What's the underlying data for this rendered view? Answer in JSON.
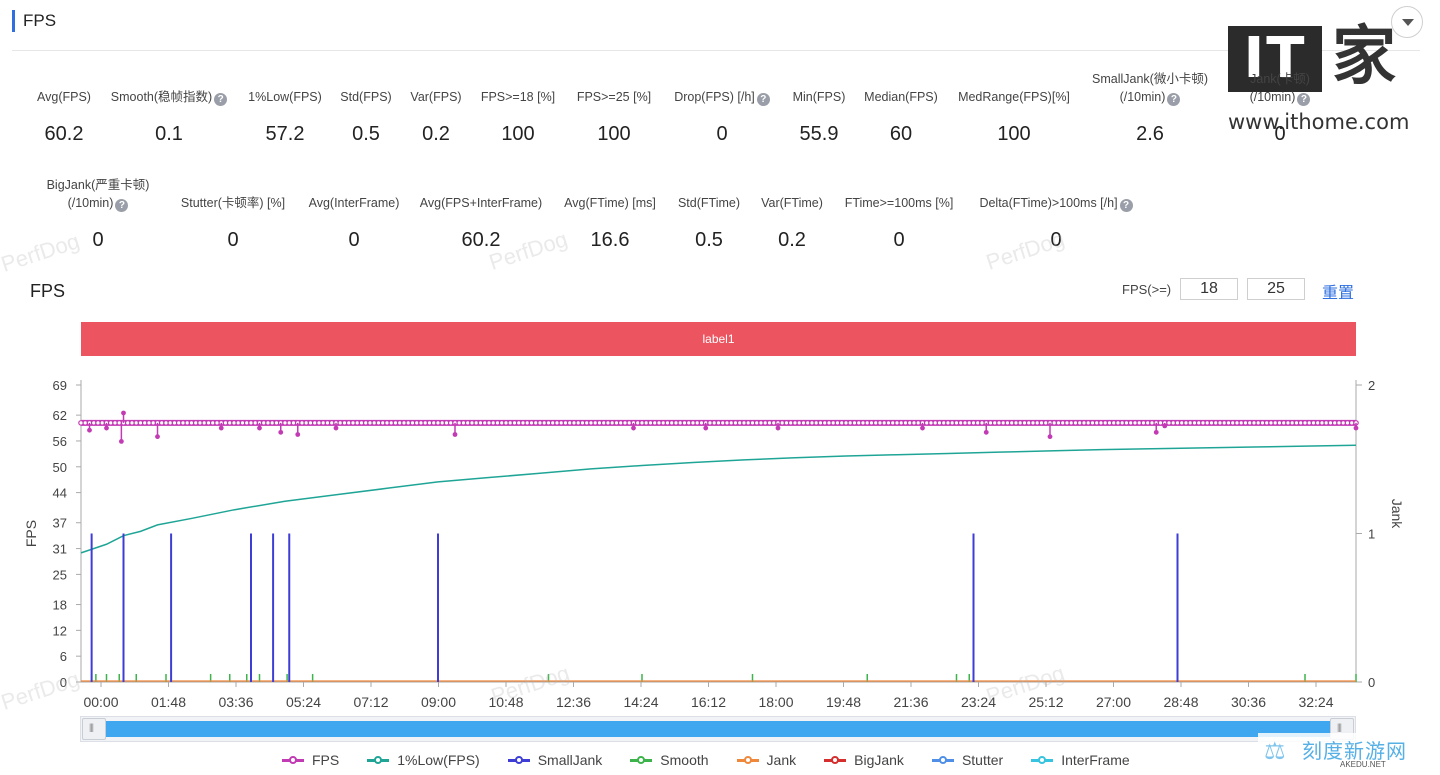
{
  "header": {
    "title": "FPS"
  },
  "logo": {
    "it": "IT",
    "jia": "家",
    "url": "www.ithome.com"
  },
  "metrics_row1": [
    {
      "label": "Avg(FPS)",
      "value": "60.2",
      "help": false
    },
    {
      "label": "Smooth(稳帧指数)",
      "value": "0.1",
      "help": true
    },
    {
      "label": "1%Low(FPS)",
      "value": "57.2",
      "help": false
    },
    {
      "label": "Std(FPS)",
      "value": "0.5",
      "help": false
    },
    {
      "label": "Var(FPS)",
      "value": "0.2",
      "help": false
    },
    {
      "label": "FPS>=18 [%]",
      "value": "100",
      "help": false
    },
    {
      "label": "FPS>=25 [%]",
      "value": "100",
      "help": false
    },
    {
      "label": "Drop(FPS) [/h]",
      "value": "0",
      "help": true
    },
    {
      "label": "Min(FPS)",
      "value": "55.9",
      "help": false
    },
    {
      "label": "Median(FPS)",
      "value": "60",
      "help": false
    },
    {
      "label": "MedRange(FPS)[%]",
      "value": "100",
      "help": false
    },
    {
      "label": "SmallJank(微小卡顿)",
      "label2": "(/10min)",
      "value": "2.6",
      "help": true
    },
    {
      "label": "Jank(卡顿)",
      "label2": "(/10min)",
      "value": "0",
      "help": true
    }
  ],
  "metrics_row2": [
    {
      "label": "BigJank(严重卡顿)",
      "label2": "(/10min)",
      "value": "0",
      "help": true
    },
    {
      "label": "Stutter(卡顿率) [%]",
      "value": "0",
      "help": false
    },
    {
      "label": "Avg(InterFrame)",
      "value": "0",
      "help": false
    },
    {
      "label": "Avg(FPS+InterFrame)",
      "value": "60.2",
      "help": false
    },
    {
      "label": "Avg(FTime) [ms]",
      "value": "16.6",
      "help": false
    },
    {
      "label": "Std(FTime)",
      "value": "0.5",
      "help": false
    },
    {
      "label": "Var(FTime)",
      "value": "0.2",
      "help": false
    },
    {
      "label": "FTime>=100ms [%]",
      "value": "0",
      "help": false
    },
    {
      "label": "Delta(FTime)>100ms [/h]",
      "value": "0",
      "help": true
    }
  ],
  "chart_section": {
    "title": "FPS",
    "threshold_label": "FPS(>=)",
    "threshold_1": "18",
    "threshold_2": "25",
    "reset_label": "重置",
    "band_label": "label1"
  },
  "watermark": "PerfDog",
  "colors": {
    "fps": "#c23ab4",
    "smooth": "#3cb44b",
    "low1": "#1fa596",
    "smalljank": "#3e3ed6",
    "jank": "#f0883b",
    "bigjank": "#d62d2d",
    "stutter": "#4f8fe8",
    "interframe": "#36c4e0",
    "band": "#ec5460",
    "accent": "#2f6fe0",
    "scrollbar": "#3ea7ef"
  },
  "chart_data": {
    "type": "line",
    "title": "",
    "xlabel": "",
    "ylabel": "FPS",
    "y2label": "Jank",
    "ylim": [
      0,
      69
    ],
    "y_ticks": [
      0,
      6,
      12,
      18,
      25,
      31,
      37,
      44,
      50,
      56,
      62,
      69
    ],
    "y2lim": [
      0,
      2
    ],
    "y2_ticks": [
      0,
      1,
      2
    ],
    "x_ticks": [
      "00:00",
      "01:48",
      "03:36",
      "05:24",
      "07:12",
      "09:00",
      "10:48",
      "12:36",
      "14:24",
      "16:12",
      "18:00",
      "19:48",
      "21:36",
      "23:24",
      "25:12",
      "27:00",
      "28:48",
      "30:36",
      "32:24"
    ],
    "x_range_seconds": [
      0,
      2046
    ],
    "series": [
      {
        "name": "FPS",
        "baseline": 60.2,
        "dips": [
          [
            20,
            58.5
          ],
          [
            60,
            59
          ],
          [
            95,
            55.9
          ],
          [
            180,
            57
          ],
          [
            330,
            59
          ],
          [
            420,
            59
          ],
          [
            470,
            58
          ],
          [
            510,
            57.5
          ],
          [
            600,
            59
          ],
          [
            880,
            57.5
          ],
          [
            1300,
            59
          ],
          [
            1470,
            59
          ],
          [
            1640,
            59
          ],
          [
            1980,
            59
          ],
          [
            2130,
            58
          ],
          [
            2280,
            57
          ],
          [
            2530,
            58
          ],
          [
            2550,
            59.5
          ],
          [
            3000,
            59
          ]
        ],
        "peak": [
          [
            100,
            62.5
          ]
        ]
      },
      {
        "name": "1%Low(FPS)",
        "points": [
          [
            0,
            30
          ],
          [
            60,
            32
          ],
          [
            100,
            34
          ],
          [
            140,
            35
          ],
          [
            180,
            36.5
          ],
          [
            260,
            38
          ],
          [
            360,
            40
          ],
          [
            480,
            42
          ],
          [
            600,
            43.5
          ],
          [
            720,
            45
          ],
          [
            840,
            46.5
          ],
          [
            960,
            47.5
          ],
          [
            1080,
            48.5
          ],
          [
            1200,
            49.5
          ],
          [
            1320,
            50.3
          ],
          [
            1440,
            51
          ],
          [
            1560,
            51.6
          ],
          [
            1680,
            52.1
          ],
          [
            1800,
            52.5
          ],
          [
            1920,
            52.8
          ],
          [
            2040,
            53.1
          ],
          [
            2160,
            53.4
          ],
          [
            2280,
            53.7
          ],
          [
            2400,
            54
          ],
          [
            2520,
            54.2
          ],
          [
            2640,
            54.4
          ],
          [
            2760,
            54.6
          ],
          [
            2880,
            54.8
          ],
          [
            3000,
            55
          ]
        ]
      },
      {
        "name": "SmallJank",
        "spikes": [
          25,
          100,
          212,
          400,
          452,
          490,
          840,
          2100,
          2580
        ]
      },
      {
        "name": "Smooth",
        "ticks": [
          25,
          35,
          60,
          90,
          100,
          130,
          200,
          305,
          350,
          390,
          420,
          485,
          545,
          840,
          1100,
          1320,
          1580,
          1850,
          2060,
          2090,
          2100,
          2880,
          3000
        ]
      },
      {
        "name": "Jank",
        "values": []
      },
      {
        "name": "BigJank",
        "values": []
      },
      {
        "name": "Stutter",
        "values": []
      },
      {
        "name": "InterFrame",
        "values": []
      }
    ],
    "legend_position": "bottom",
    "grid": false
  },
  "akedu": {
    "cn": "刻度新游网",
    "en": "AKEDU.NET"
  }
}
